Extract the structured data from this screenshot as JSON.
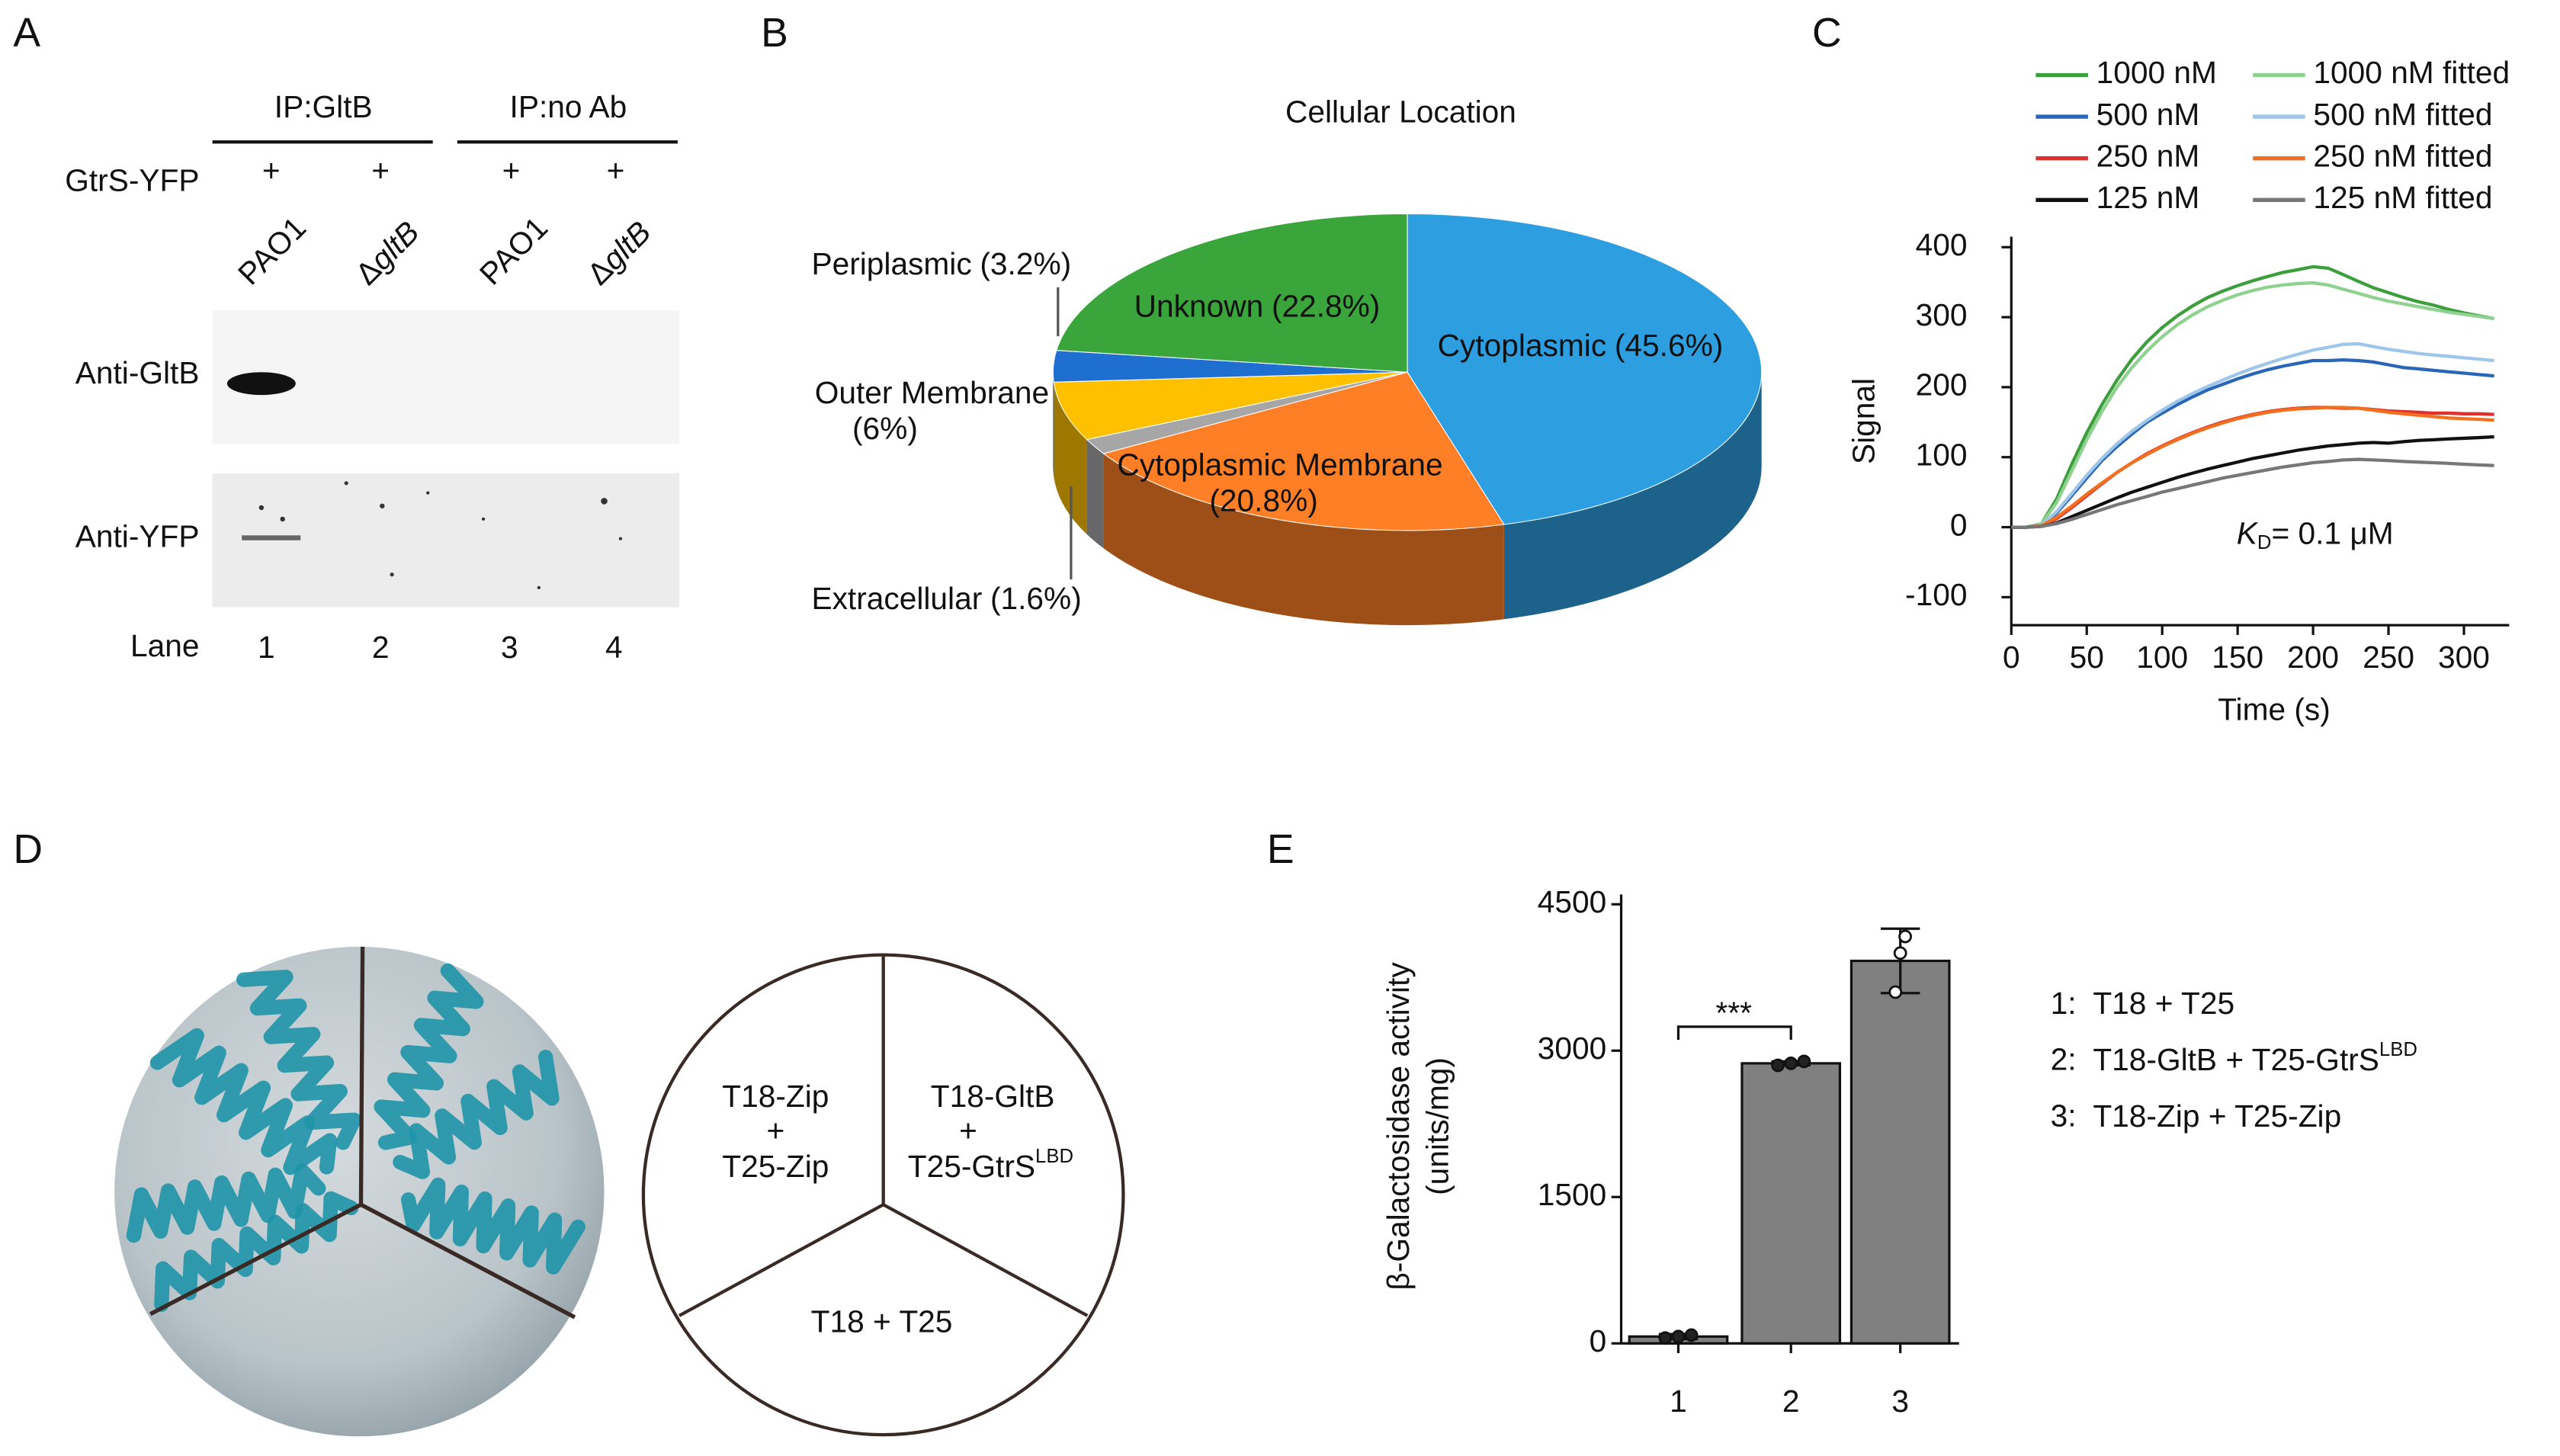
{
  "panel_a": {
    "label": "A",
    "groups": [
      "IP:GltB",
      "IP:no Ab"
    ],
    "row_label": "GtrS-YFP",
    "plus": [
      "+",
      "+",
      "+",
      "+"
    ],
    "strains": [
      [
        "PAO1"
      ],
      [
        "Δ",
        "gltB"
      ],
      [
        "PAO1"
      ],
      [
        "Δ",
        "gltB"
      ]
    ],
    "blots": [
      "Anti-GltB",
      "Anti-YFP"
    ],
    "lane_title": "Lane",
    "lanes": [
      "1",
      "2",
      "3",
      "4"
    ]
  },
  "chart_data": [
    {
      "type": "pie",
      "panel_label": "B",
      "title": "Cellular Location",
      "categories": [
        "Cytoplasmic",
        "Cytoplasmic Membrane",
        "Extracellular",
        "Outer Membrane",
        "Periplasmic",
        "Unknown"
      ],
      "values": [
        45.6,
        20.8,
        1.6,
        6,
        3.2,
        22.8
      ],
      "value_labels": [
        "(45.6%)",
        "(20.8%)",
        "(1.6%)",
        "(6%)",
        "(3.2%)",
        "(22.8%)"
      ],
      "colors": [
        "#2d9ee0",
        "#ff7f27",
        "#a6a6a6",
        "#ffc000",
        "#1f6fd0",
        "#3aa53a"
      ]
    },
    {
      "type": "line",
      "panel_label": "C",
      "xlabel": "Time (s)",
      "ylabel": "Signal",
      "x": [
        0,
        10,
        20,
        30,
        40,
        50,
        60,
        70,
        80,
        90,
        100,
        110,
        120,
        130,
        140,
        150,
        160,
        170,
        180,
        190,
        200,
        210,
        220,
        230,
        240,
        250,
        260,
        270,
        280,
        290,
        300,
        310,
        320
      ],
      "series": [
        {
          "name": "1000 nM",
          "color": "#3c9e3c",
          "values": [
            0,
            0,
            5,
            40,
            90,
            135,
            175,
            210,
            240,
            265,
            285,
            302,
            316,
            328,
            337,
            345,
            352,
            358,
            364,
            368,
            372,
            370,
            361,
            351,
            342,
            335,
            328,
            322,
            317,
            311,
            306,
            302,
            298
          ]
        },
        {
          "name": "1000 nM fitted",
          "color": "#8fd18f",
          "values": [
            0,
            0,
            5,
            35,
            80,
            125,
            165,
            200,
            228,
            252,
            272,
            289,
            303,
            315,
            324,
            332,
            338,
            343,
            346,
            348,
            349,
            346,
            340,
            334,
            328,
            323,
            319,
            315,
            311,
            307,
            304,
            301,
            298
          ]
        },
        {
          "name": "500 nM",
          "color": "#2a66b8",
          "values": [
            0,
            0,
            3,
            20,
            45,
            70,
            95,
            115,
            133,
            150,
            163,
            175,
            186,
            196,
            204,
            212,
            219,
            225,
            230,
            234,
            238,
            238,
            239,
            238,
            236,
            232,
            228,
            226,
            224,
            222,
            220,
            218,
            216
          ]
        },
        {
          "name": "500 nM fitted",
          "color": "#9ec6e8",
          "values": [
            0,
            0,
            3,
            22,
            48,
            74,
            98,
            119,
            137,
            153,
            167,
            180,
            191,
            201,
            210,
            219,
            227,
            234,
            241,
            247,
            253,
            257,
            261,
            262,
            258,
            254,
            251,
            248,
            246,
            244,
            242,
            240,
            238
          ]
        },
        {
          "name": "250 nM",
          "color": "#e0302e",
          "values": [
            0,
            0,
            2,
            12,
            28,
            45,
            62,
            78,
            92,
            105,
            116,
            126,
            135,
            143,
            150,
            156,
            161,
            165,
            168,
            170,
            171,
            171,
            170,
            170,
            168,
            166,
            165,
            164,
            163,
            163,
            162,
            162,
            161
          ]
        },
        {
          "name": "250 nM fitted",
          "color": "#f07020",
          "values": [
            0,
            0,
            2,
            14,
            30,
            47,
            63,
            78,
            92,
            104,
            115,
            125,
            134,
            142,
            149,
            155,
            160,
            164,
            167,
            169,
            170,
            171,
            171,
            170,
            167,
            164,
            162,
            160,
            158,
            156,
            155,
            154,
            153
          ]
        },
        {
          "name": "125 nM",
          "color": "#111111",
          "values": [
            0,
            0,
            1,
            6,
            15,
            24,
            33,
            42,
            50,
            57,
            64,
            71,
            77,
            83,
            88,
            93,
            98,
            102,
            106,
            110,
            113,
            116,
            118,
            120,
            121,
            120,
            122,
            124,
            125,
            126,
            127,
            128,
            129
          ]
        },
        {
          "name": "125 nM fitted",
          "color": "#777777",
          "values": [
            0,
            0,
            1,
            5,
            11,
            18,
            25,
            32,
            38,
            44,
            50,
            55,
            60,
            65,
            70,
            74,
            78,
            82,
            86,
            89,
            92,
            94,
            96,
            97,
            96,
            95,
            94,
            93,
            92,
            91,
            90,
            89,
            88
          ]
        }
      ],
      "xlim": [
        0,
        330
      ],
      "ylim": [
        -140,
        415
      ],
      "xticks": [
        0,
        50,
        100,
        150,
        200,
        250,
        300
      ],
      "yticks": [
        -100,
        0,
        100,
        200,
        300,
        400
      ],
      "annotation": [
        "K",
        "D",
        "= 0.1 μM"
      ],
      "legend": "upper right"
    },
    {
      "type": "bar",
      "panel_label": "E",
      "categories": [
        "1",
        "2",
        "3"
      ],
      "values": [
        70,
        2870,
        3920
      ],
      "errors": [
        25,
        20,
        330
      ],
      "points": [
        [
          55,
          70,
          85
        ],
        [
          2850,
          2870,
          2890
        ],
        [
          3600,
          4000,
          4170
        ]
      ],
      "color": "#808080",
      "ylabel": [
        "β-Galactosidase activity",
        "(units/mg)"
      ],
      "ylim": [
        0,
        4500
      ],
      "yticks": [
        0,
        1500,
        3000,
        4500
      ],
      "annotation": "***",
      "notes": [
        [
          "1:",
          "T18 + T25"
        ],
        [
          "2:",
          "T18-GltB + T25-GtrS",
          "LBD"
        ],
        [
          "3:",
          "T18-Zip + T25-Zip"
        ]
      ]
    }
  ],
  "panel_d": {
    "label": "D",
    "sectors": [
      [
        "T18-Zip",
        "+",
        "T25-Zip"
      ],
      [
        "T18-GltB",
        "+",
        "T25-GtrS",
        "LBD"
      ],
      [
        "T18 + T25"
      ]
    ]
  }
}
